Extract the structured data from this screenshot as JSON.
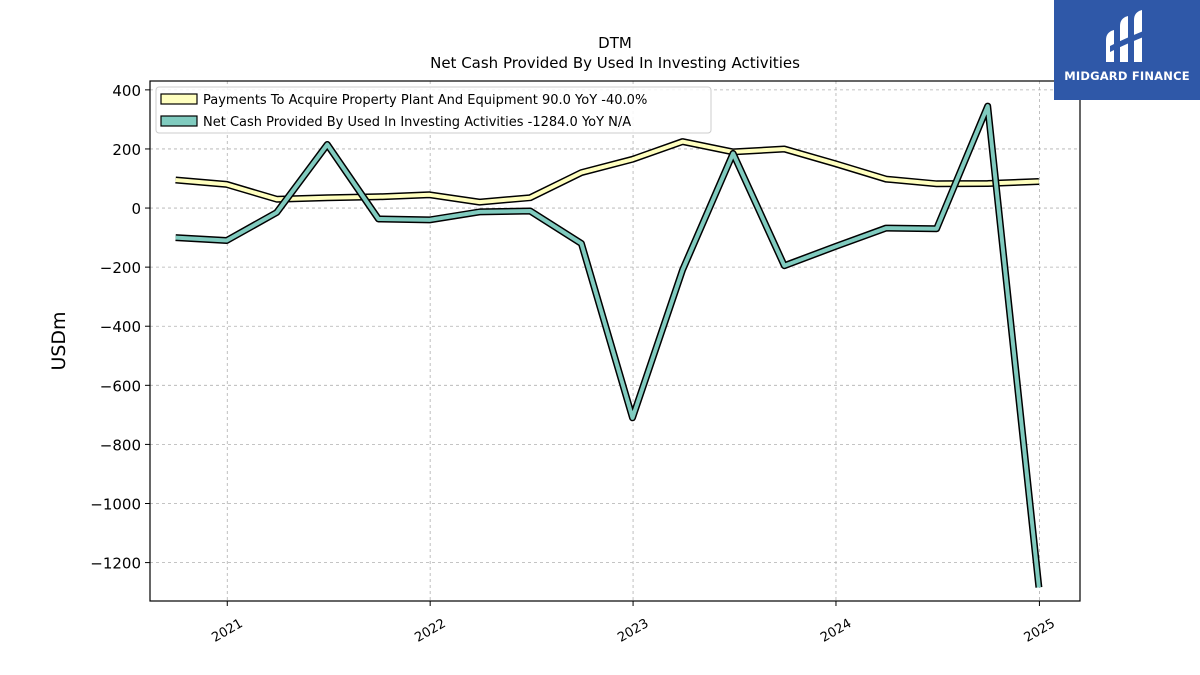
{
  "chart_data": {
    "type": "line",
    "title": "DTM",
    "subtitle": "Net Cash Provided By Used In Investing Activities",
    "ylabel": "USDm",
    "xlabel": "",
    "ylim": [
      -1330,
      430
    ],
    "xlim": [
      "2020-08-15",
      "2025-03-15"
    ],
    "yticks": [
      400,
      200,
      0,
      -200,
      -400,
      -600,
      -800,
      -1000,
      -1200
    ],
    "ytick_labels": [
      "400",
      "200",
      "0",
      "−200",
      "−400",
      "−600",
      "−800",
      "−1000",
      "−1200"
    ],
    "xticks": [
      "2021-01-01",
      "2022-01-01",
      "2023-01-01",
      "2024-01-01",
      "2025-01-01"
    ],
    "xtick_labels": [
      "2021",
      "2022",
      "2023",
      "2024",
      "2025"
    ],
    "grid": true,
    "legend_position": "top-left",
    "x": [
      "2020-09-30",
      "2020-12-31",
      "2021-03-31",
      "2021-06-30",
      "2021-09-30",
      "2021-12-31",
      "2022-03-31",
      "2022-06-30",
      "2022-09-30",
      "2022-12-31",
      "2023-03-31",
      "2023-06-30",
      "2023-09-30",
      "2023-12-31",
      "2024-03-31",
      "2024-06-30",
      "2024-09-30",
      "2024-12-31"
    ],
    "series": [
      {
        "name": "Payments To Acquire Property Plant And Equipment",
        "legend": "Payments To Acquire Property Plant And Equipment  90.0 YoY -40.0%",
        "color": "#ffffbf",
        "values": [
          95,
          80,
          30,
          35,
          38,
          45,
          20,
          35,
          120,
          165,
          225,
          190,
          200,
          150,
          98,
          82,
          83,
          90
        ]
      },
      {
        "name": "Net Cash Provided By Used In Investing Activities",
        "legend": "Net Cash Provided By Used In Investing Activities  -1284.0 YoY N/A",
        "color": "#80cbbf",
        "values": [
          -100,
          -110,
          -15,
          215,
          -37,
          -40,
          -13,
          -10,
          -120,
          -710,
          -210,
          185,
          -195,
          -130,
          -68,
          -70,
          345,
          -1284
        ]
      }
    ]
  },
  "logo": {
    "text": "MIDGARD FINANCE",
    "background": "#2f58a8"
  }
}
